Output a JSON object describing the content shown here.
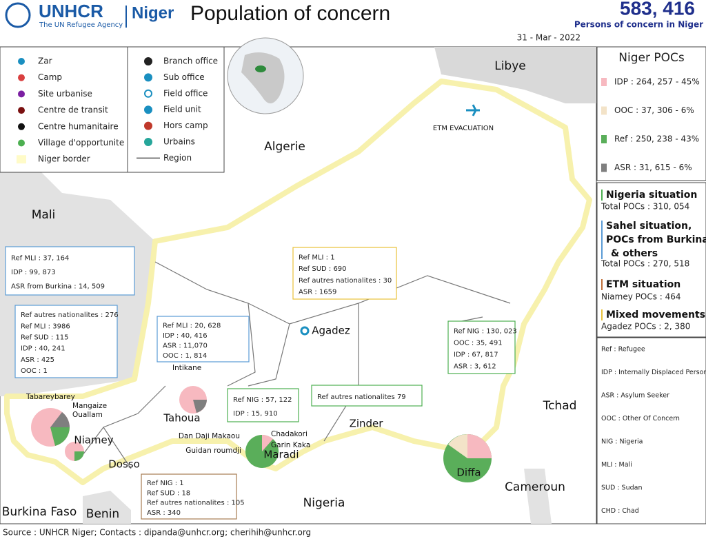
{
  "header": {
    "org": "UNHCR",
    "org_sub": "The UN Refugee Agency",
    "country": "Niger",
    "title": "Population of concern",
    "total": "583, 416",
    "total_label": "Persons of concern in Niger",
    "date": "31 - Mar - 2022"
  },
  "legend": {
    "left": [
      "Zar",
      "Camp",
      "Site urbanise",
      "Centre de transit",
      "Centre humanitaire",
      "Village d'opportunite",
      "Niger border"
    ],
    "right": [
      "Branch office",
      "Sub office",
      "Field office",
      "Field unit",
      "Hors camp",
      "Urbains",
      "Region"
    ]
  },
  "map": {
    "countries": [
      "Libye",
      "Algerie",
      "Mali",
      "Tchad",
      "Nigeria",
      "Cameroun",
      "Burkina Faso",
      "Benin"
    ],
    "regions": [
      "Agadez",
      "Tahoua",
      "Niamey",
      "Dosso",
      "Maradi",
      "Zinder",
      "Diffa"
    ],
    "places": [
      "Tabareybarey",
      "Mangaize",
      "Ouallam",
      "Intikane",
      "Dan Daji Makaou",
      "Chadakori",
      "Garin Kaka",
      "Guidan roumdji",
      "ETM EVACUATION"
    ]
  },
  "boxes": [
    {
      "lines": [
        "Ref MLI : 37, 164",
        "IDP : 99, 873",
        "ASR from Burkina : 14, 509"
      ]
    },
    {
      "lines": [
        "Ref autres nationalites : 276",
        "Ref MLI : 3986",
        "Ref SUD : 115",
        "IDP : 40, 241",
        "ASR : 425",
        "OOC : 1"
      ]
    },
    {
      "lines": [
        "Ref MLI : 20, 628",
        "IDP : 40, 416",
        "ASR : 11,070",
        "OOC : 1, 814"
      ]
    },
    {
      "lines": [
        "Ref MLI : 1",
        "Ref SUD : 690",
        "Ref autres nationalites : 30",
        "ASR : 1659"
      ]
    },
    {
      "lines": [
        "Ref NIG : 57, 122",
        "IDP : 15, 910"
      ]
    },
    {
      "lines": [
        "Ref autres nationalites 79"
      ]
    },
    {
      "lines": [
        "Ref NIG : 130, 023",
        "OOC : 35, 491",
        "IDP : 67, 817",
        "ASR : 3, 612"
      ]
    },
    {
      "lines": [
        "Ref NIG : 1",
        "Ref SUD : 18",
        "Ref autres nationalites : 105",
        "ASR : 340"
      ]
    }
  ],
  "sidebar": {
    "pocs_title": "Niger POCs",
    "pocs": [
      "IDP : 264, 257 - 45%",
      "OOC : 37, 306 - 6%",
      "Ref : 250, 238 - 43%",
      "ASR : 31, 615 - 6%"
    ],
    "situations": [
      {
        "title": "Nigeria situation",
        "detail": "Total POCs : 310, 054"
      },
      {
        "title": "Sahel situation, POCs from Burkina & others",
        "detail": "Total POCs : 270, 518"
      },
      {
        "title": "ETM situation",
        "detail": "Niamey POCs : 464"
      },
      {
        "title": "Mixed movements",
        "detail": "Agadez POCs : 2, 380"
      }
    ],
    "abbreviations": [
      "Ref : Refugee",
      "IDP : Internally Displaced Person",
      "ASR : Asylum Seeker",
      "OOC : Other Of Concern",
      "NIG : Nigeria",
      "MLI : Mali",
      "SUD : Sudan",
      "CHD : Chad"
    ]
  },
  "footer": {
    "source": "Source : UNHCR Niger; Contacts : dipanda@unhcr.org; cherihih@unhcr.org"
  }
}
